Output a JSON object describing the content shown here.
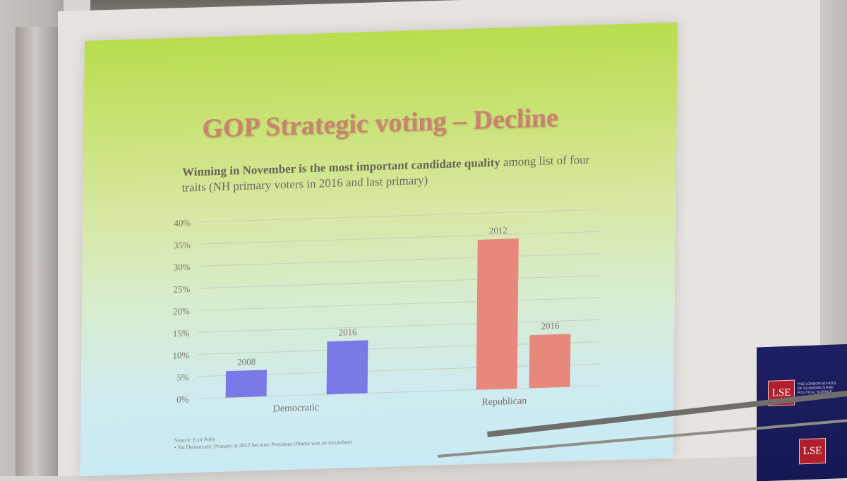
{
  "slide": {
    "title": "GOP Strategic voting – Decline",
    "chart_title_bold": "Winning in November is the most important candidate quality",
    "chart_title_rest": " among list of four traits (NH primary voters in 2016 and last primary)",
    "footnote_source": "Source: Exit Polls",
    "footnote_note": "• No Democratic Primary in 2012 because President Obama was an incumbent"
  },
  "branding": {
    "lse_logo": "LSE",
    "lse_name_line1": "THE LONDON SCHOOL",
    "lse_name_line2": "OF ECONOMICS AND",
    "lse_name_line3": "POLITICAL SCIENCE"
  },
  "chart_data": {
    "type": "bar",
    "categories": [
      "Democratic",
      "Republican"
    ],
    "bars": [
      {
        "category": "Democratic",
        "label": "2008",
        "value": 6,
        "color": "#7b78e8"
      },
      {
        "category": "Democratic",
        "label": "2016",
        "value": 12,
        "color": "#7b78e8"
      },
      {
        "category": "Republican",
        "label": "2012",
        "value": 34,
        "color": "#e8877c"
      },
      {
        "category": "Republican",
        "label": "2016",
        "value": 12,
        "color": "#e8877c"
      }
    ],
    "y_ticks": [
      "0%",
      "5%",
      "10%",
      "15%",
      "20%",
      "25%",
      "30%",
      "35%",
      "40%"
    ],
    "ylim": [
      0,
      40
    ],
    "grid": true,
    "colors": {
      "democratic": "#7b78e8",
      "republican": "#e8877c",
      "grid": "#c9cfc0",
      "text": "#7a746b"
    }
  }
}
